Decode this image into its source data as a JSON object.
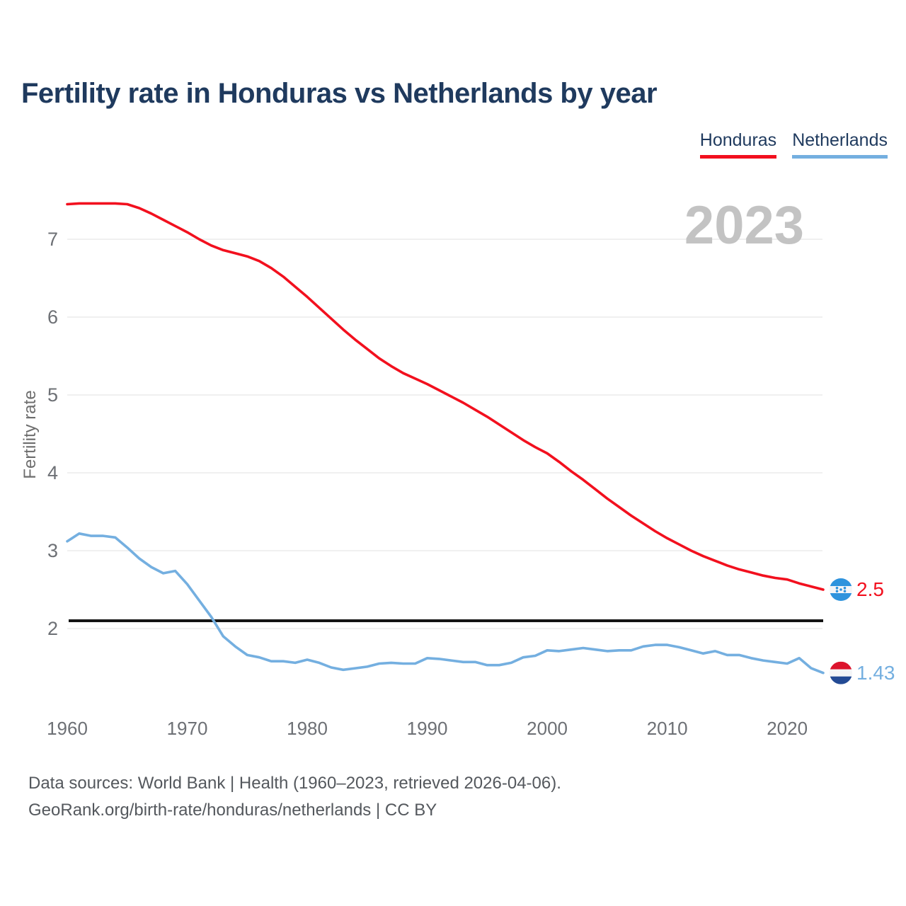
{
  "title": "Fertility rate in Honduras vs Netherlands by year",
  "watermark": "2023",
  "legend": {
    "items": [
      {
        "label": "Honduras",
        "color": "#f2101e"
      },
      {
        "label": "Netherlands",
        "color": "#74afe0"
      }
    ]
  },
  "footer": {
    "line1": "Data sources: World Bank | Health (1960–2023, retrieved 2026-04-06).",
    "line2": "GeoRank.org/birth-rate/honduras/netherlands | CC BY"
  },
  "chart_data": {
    "type": "line",
    "title": "Fertility rate in Honduras vs Netherlands by year",
    "xlabel": "",
    "ylabel": "Fertility rate",
    "x_range": [
      1960,
      2023
    ],
    "x_step": 1,
    "xticks": [
      1960,
      1970,
      1980,
      1990,
      2000,
      2010,
      2020
    ],
    "yticks": [
      2,
      3,
      4,
      5,
      6,
      7
    ],
    "ylim": [
      1.3,
      7.6
    ],
    "grid": true,
    "legend_position": "top-right",
    "reference_line": {
      "value": 2.1,
      "color": "#141414"
    },
    "series": [
      {
        "name": "Honduras",
        "color": "#f2101e",
        "end_label": "2.5",
        "flag": "honduras",
        "values": [
          7.45,
          7.46,
          7.46,
          7.46,
          7.46,
          7.45,
          7.4,
          7.33,
          7.25,
          7.17,
          7.09,
          7.0,
          6.92,
          6.86,
          6.82,
          6.78,
          6.72,
          6.63,
          6.52,
          6.39,
          6.26,
          6.12,
          5.98,
          5.84,
          5.71,
          5.59,
          5.47,
          5.37,
          5.28,
          5.21,
          5.14,
          5.06,
          4.98,
          4.9,
          4.81,
          4.72,
          4.62,
          4.52,
          4.42,
          4.33,
          4.25,
          4.14,
          4.02,
          3.91,
          3.79,
          3.67,
          3.56,
          3.45,
          3.35,
          3.25,
          3.16,
          3.08,
          3.0,
          2.93,
          2.87,
          2.81,
          2.76,
          2.72,
          2.68,
          2.65,
          2.63,
          2.58,
          2.54,
          2.5
        ]
      },
      {
        "name": "Netherlands",
        "color": "#74afe0",
        "end_label": "1.43",
        "flag": "netherlands",
        "values": [
          3.12,
          3.22,
          3.19,
          3.19,
          3.17,
          3.04,
          2.9,
          2.79,
          2.71,
          2.74,
          2.57,
          2.36,
          2.15,
          1.9,
          1.77,
          1.66,
          1.63,
          1.58,
          1.58,
          1.56,
          1.6,
          1.56,
          1.5,
          1.47,
          1.49,
          1.51,
          1.55,
          1.56,
          1.55,
          1.55,
          1.62,
          1.61,
          1.59,
          1.57,
          1.57,
          1.53,
          1.53,
          1.56,
          1.63,
          1.65,
          1.72,
          1.71,
          1.73,
          1.75,
          1.73,
          1.71,
          1.72,
          1.72,
          1.77,
          1.79,
          1.79,
          1.76,
          1.72,
          1.68,
          1.71,
          1.66,
          1.66,
          1.62,
          1.59,
          1.57,
          1.55,
          1.62,
          1.49,
          1.43
        ]
      }
    ]
  }
}
